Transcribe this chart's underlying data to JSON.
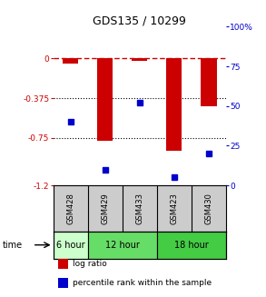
{
  "title": "GDS135 / 10299",
  "samples": [
    "GSM428",
    "GSM429",
    "GSM433",
    "GSM423",
    "GSM430"
  ],
  "log_ratio": [
    -0.05,
    -0.78,
    -0.02,
    -0.87,
    -0.45
  ],
  "percentile_rank": [
    40,
    10,
    52,
    5,
    20
  ],
  "ylim_left": [
    -1.2,
    0.3
  ],
  "ylim_right": [
    0,
    100
  ],
  "yticks_left": [
    0,
    -0.375,
    -0.75,
    -1.2
  ],
  "ytick_labels_left": [
    "0",
    "-0.375",
    "-0.75",
    "-1.2"
  ],
  "yticks_right": [
    0,
    25,
    50,
    75,
    100
  ],
  "ytick_labels_right": [
    "0",
    "25",
    "50",
    "75",
    "100%"
  ],
  "bar_color": "#cc0000",
  "dot_color": "#0000cc",
  "dotted_lines": [
    -0.375,
    -0.75
  ],
  "time_groups": [
    {
      "label": "6 hour",
      "start": 0,
      "end": 1,
      "color": "#ccffcc"
    },
    {
      "label": "12 hour",
      "start": 1,
      "end": 3,
      "color": "#66dd66"
    },
    {
      "label": "18 hour",
      "start": 3,
      "end": 5,
      "color": "#44cc44"
    }
  ],
  "legend_items": [
    {
      "label": "log ratio",
      "color": "#cc0000"
    },
    {
      "label": "percentile rank within the sample",
      "color": "#0000cc"
    }
  ],
  "sample_bg_color": "#cccccc",
  "background_color": "#ffffff"
}
